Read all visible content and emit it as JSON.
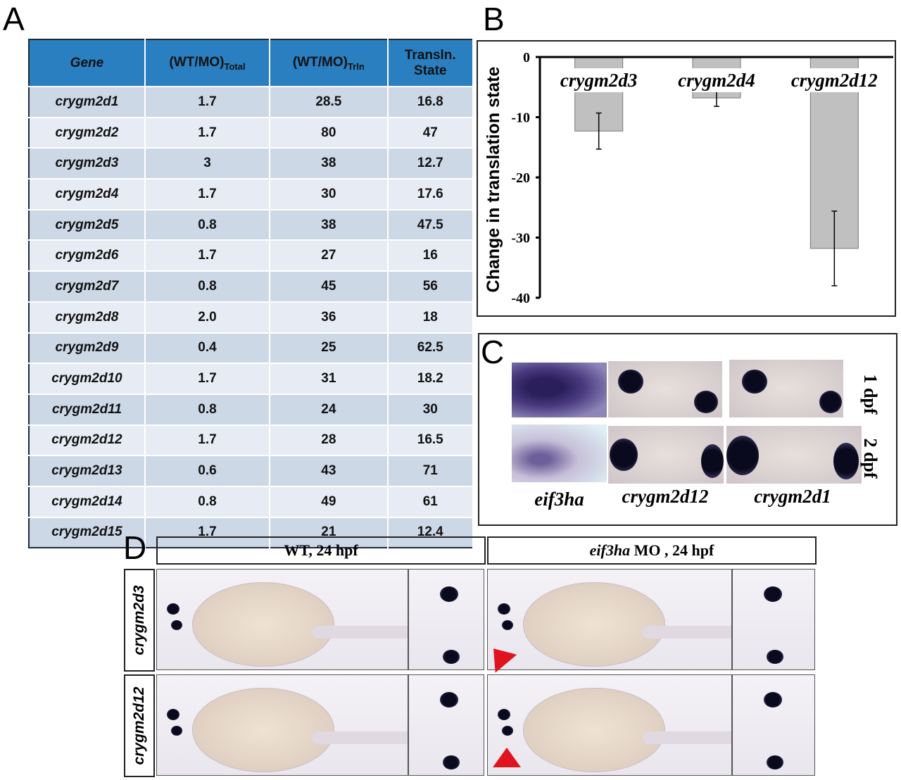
{
  "panels": {
    "a": "A",
    "b": "B",
    "c": "C",
    "d": "D"
  },
  "table": {
    "headers": {
      "gene": "Gene",
      "total": "(WT/MO)",
      "total_sub": "Total",
      "trln": "(WT/MO)",
      "trln_sub": "Trln",
      "state_line1": "Transln.",
      "state_line2": "State"
    },
    "rows": [
      [
        "crygm2d1",
        "1.7",
        "28.5",
        "16.8"
      ],
      [
        "crygm2d2",
        "1.7",
        "80",
        "47"
      ],
      [
        "crygm2d3",
        "3",
        "38",
        "12.7"
      ],
      [
        "crygm2d4",
        "1.7",
        "30",
        "17.6"
      ],
      [
        "crygm2d5",
        "0.8",
        "38",
        "47.5"
      ],
      [
        "crygm2d6",
        "1.7",
        "27",
        "16"
      ],
      [
        "crygm2d7",
        "0.8",
        "45",
        "56"
      ],
      [
        "crygm2d8",
        "2.0",
        "36",
        "18"
      ],
      [
        "crygm2d9",
        "0.4",
        "25",
        "62.5"
      ],
      [
        "crygm2d10",
        "1.7",
        "31",
        "18.2"
      ],
      [
        "crygm2d11",
        "0.8",
        "24",
        "30"
      ],
      [
        "crygm2d12",
        "1.7",
        "28",
        "16.5"
      ],
      [
        "crygm2d13",
        "0.6",
        "43",
        "71"
      ],
      [
        "crygm2d14",
        "0.8",
        "49",
        "61"
      ],
      [
        "crygm2d15",
        "1.7",
        "21",
        "12.4"
      ]
    ]
  },
  "chart_data": {
    "type": "bar",
    "categories": [
      "crygm2d3",
      "crygm2d4",
      "crygm2d12"
    ],
    "values": [
      -12.3,
      -6.8,
      -31.8
    ],
    "errors": [
      3.0,
      1.4,
      6.2
    ],
    "ylabel": "Change in translation state",
    "ylim": [
      -40,
      0
    ],
    "yticks": [
      "0",
      "-10",
      "-20",
      "-30",
      "-40"
    ],
    "bar_color": "#c0c0c0"
  },
  "panel_c": {
    "columns": [
      "eif3ha",
      "crygm2d12",
      "crygm2d1"
    ],
    "rows": [
      "1 dpf",
      "2 dpf"
    ]
  },
  "panel_d": {
    "col_headers": {
      "wt": "WT, 24 hpf",
      "mo_gene": "eif3ha",
      "mo_rest": " MO , 24 hpf"
    },
    "row_labels": [
      "crygm2d3",
      "crygm2d12"
    ],
    "arrow_color": "#e0141e"
  }
}
